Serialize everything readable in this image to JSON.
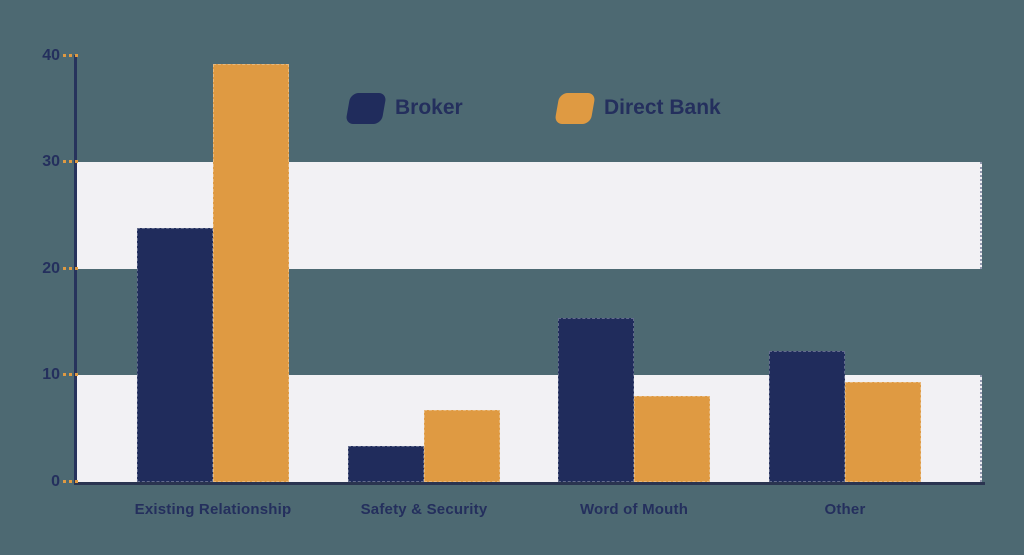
{
  "page": {
    "background_color": "#4d6972"
  },
  "chart_data": {
    "type": "bar",
    "title": "",
    "xlabel": "",
    "ylabel": "",
    "categories": [
      "Existing Relationship",
      "Safety & Security",
      "Word of Mouth",
      "Other"
    ],
    "series": [
      {
        "name": "Broker",
        "color": "#202c5c",
        "values": [
          23.8,
          3.4,
          15.4,
          12.3
        ]
      },
      {
        "name": "Direct Bank",
        "color": "#df9a42",
        "values": [
          39.2,
          6.8,
          8.1,
          9.4
        ]
      }
    ],
    "yticks": [
      0,
      10,
      20,
      30,
      40
    ],
    "ylim": [
      0,
      40
    ],
    "grid": false,
    "legend_position": "top",
    "stripe_bands": [
      [
        0,
        10
      ],
      [
        20,
        30
      ]
    ],
    "colors": {
      "stripe": "#f2f1f4",
      "axis": "#27335c",
      "baseline": "#2a3450",
      "tick_dash": "#df9a42",
      "label_text": "#242f5d"
    }
  }
}
